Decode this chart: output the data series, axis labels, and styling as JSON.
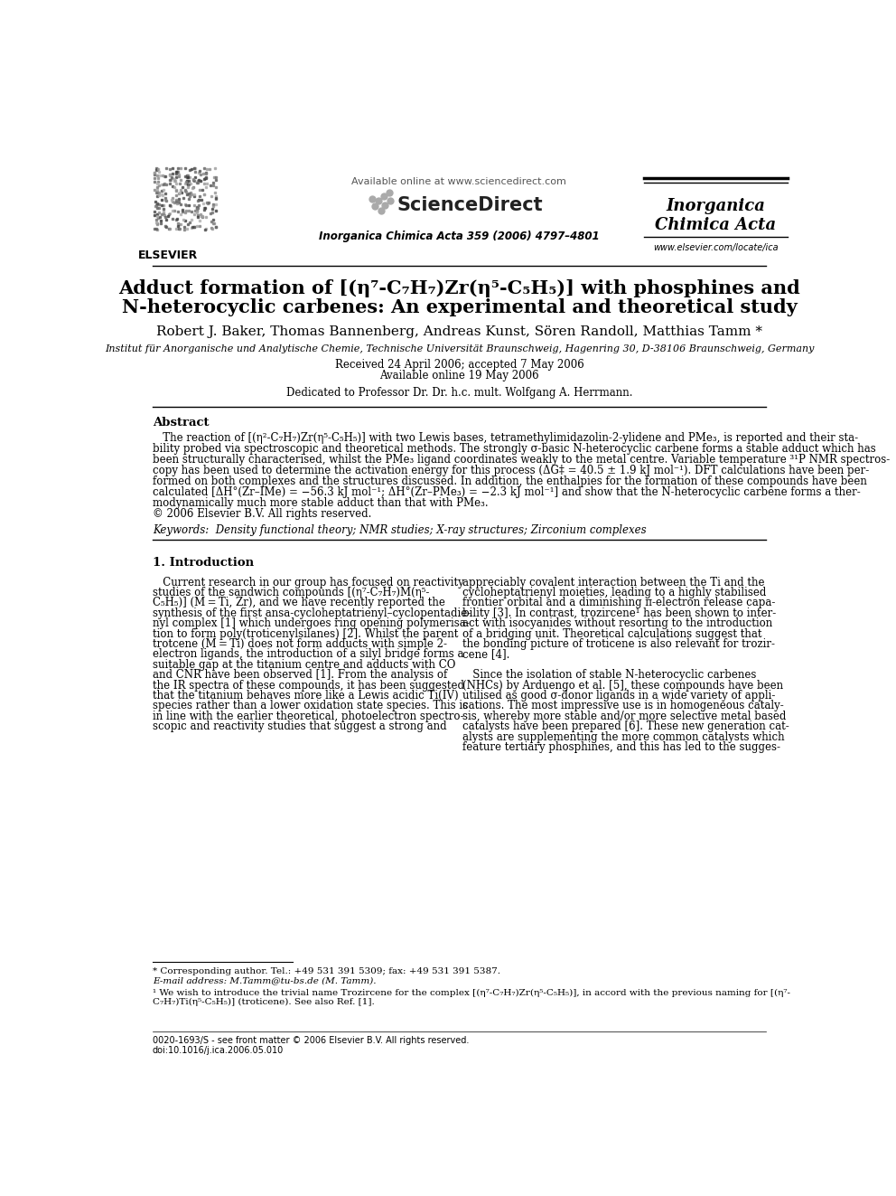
{
  "background_color": "#ffffff",
  "page_width": 9.92,
  "page_height": 13.23,
  "header": {
    "available_online": "Available online at www.sciencedirect.com",
    "journal_info": "Inorganica Chimica Acta 359 (2006) 4797–4801",
    "journal_name_line1": "Inorganica",
    "journal_name_line2": "Chimica Acta",
    "website": "www.elsevier.com/locate/ica",
    "elsevier_label": "ELSEVIER",
    "sciencedirect_label": "ScienceDirect"
  },
  "title_line1": "Adduct formation of [(η⁷-C₇H₇)Zr(η⁵-C₅H₅)] with phosphines and",
  "title_line2": "N-heterocyclic carbenes: An experimental and theoretical study",
  "authors": "Robert J. Baker, Thomas Bannenberg, Andreas Kunst, Sören Randoll, Matthias Tamm *",
  "affiliation": "Institut für Anorganische und Analytische Chemie, Technische Universität Braunschweig, Hagenring 30, D-38106 Braunschweig, Germany",
  "received": "Received 24 April 2006; accepted 7 May 2006",
  "available": "Available online 19 May 2006",
  "dedication": "Dedicated to Professor Dr. Dr. h.c. mult. Wolfgang A. Herrmann.",
  "abstract_title": "Abstract",
  "keywords": "Keywords:  Density functional theory; NMR studies; X-ray structures; Zirconium complexes",
  "section1_title": "1. Introduction",
  "footnote_star": "* Corresponding author. Tel.: +49 531 391 5309; fax: +49 531 391 5387.",
  "footnote_email": "E-mail address: M.Tamm@tu-bs.de (M. Tamm).",
  "footnote1_line1": "  ¹ We wish to introduce the trivial name Trozircene for the complex [(η⁷-",
  "footnote1_line2": "C₇H₇)Zr(η⁵-C₅H₅)], in accord with the previous naming for [(η⁷-",
  "footnote1_line3": "C₇H₇)Ti(η⁵-C₅H₅)] (troticene). See also Ref. [1].",
  "bottom_left": "0020-1693/S - see front matter © 2006 Elsevier B.V. All rights reserved.",
  "bottom_doi": "doi:10.1016/j.ica.2006.05.010"
}
